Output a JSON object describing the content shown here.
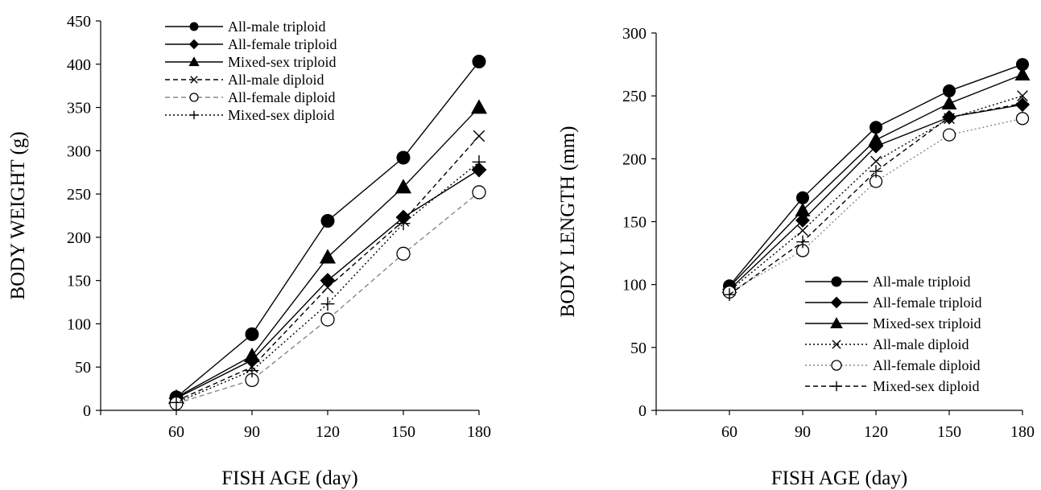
{
  "chart_data": [
    {
      "type": "line",
      "xlabel": "FISH AGE (day)",
      "ylabel": "BODY WEIGHT (g)",
      "x": [
        60,
        90,
        120,
        150,
        180
      ],
      "xlim": [
        30,
        180
      ],
      "ylim": [
        0,
        450
      ],
      "yticks": [
        0,
        50,
        100,
        150,
        200,
        250,
        300,
        350,
        400,
        450
      ],
      "xticks": [
        60,
        90,
        120,
        150,
        180
      ],
      "grid": false,
      "legend_position": "top-center",
      "series": [
        {
          "name": "All-male triploid",
          "values": [
            15,
            88,
            219,
            292,
            403
          ],
          "marker": "filled-circle",
          "line": "solid",
          "color": "#000000"
        },
        {
          "name": "All-female triploid",
          "values": [
            14,
            58,
            150,
            223,
            278
          ],
          "marker": "filled-diamond",
          "line": "solid",
          "color": "#000000"
        },
        {
          "name": "Mixed-sex triploid",
          "values": [
            15,
            63,
            177,
            258,
            350
          ],
          "marker": "filled-triangle",
          "line": "solid",
          "color": "#000000"
        },
        {
          "name": "All-male diploid",
          "values": [
            11,
            50,
            142,
            219,
            317
          ],
          "marker": "x",
          "line": "dashed",
          "color": "#000000"
        },
        {
          "name": "All-female diploid",
          "values": [
            8,
            35,
            105,
            181,
            252
          ],
          "marker": "open-circle",
          "line": "dashed",
          "color": "#888888"
        },
        {
          "name": "Mixed-sex diploid",
          "values": [
            9,
            46,
            123,
            216,
            287
          ],
          "marker": "plus",
          "line": "dotted",
          "color": "#000000"
        }
      ]
    },
    {
      "type": "line",
      "xlabel": "FISH AGE (day)",
      "ylabel": "BODY LENGTH (mm)",
      "x": [
        60,
        90,
        120,
        150,
        180
      ],
      "xlim": [
        30,
        180
      ],
      "ylim": [
        0,
        300
      ],
      "yticks": [
        0,
        50,
        100,
        150,
        200,
        250,
        300
      ],
      "xticks": [
        60,
        90,
        120,
        150,
        180
      ],
      "grid": false,
      "legend_position": "bottom-right",
      "series": [
        {
          "name": "All-male triploid",
          "values": [
            99,
            169,
            225,
            254,
            275
          ],
          "marker": "filled-circle",
          "line": "solid",
          "color": "#000000"
        },
        {
          "name": "All-female triploid",
          "values": [
            96,
            151,
            210,
            233,
            243
          ],
          "marker": "filled-diamond",
          "line": "solid",
          "color": "#000000"
        },
        {
          "name": "Mixed-sex triploid",
          "values": [
            98,
            159,
            215,
            244,
            267
          ],
          "marker": "filled-triangle",
          "line": "solid",
          "color": "#000000"
        },
        {
          "name": "All-male diploid",
          "values": [
            95,
            143,
            198,
            232,
            250
          ],
          "marker": "x",
          "line": "dotted",
          "color": "#000000"
        },
        {
          "name": "All-female diploid",
          "values": [
            94,
            127,
            182,
            219,
            232
          ],
          "marker": "open-circle",
          "line": "dotted",
          "color": "#888888"
        },
        {
          "name": "Mixed-sex diploid",
          "values": [
            92,
            134,
            190,
            233,
            244
          ],
          "marker": "plus",
          "line": "dashed",
          "color": "#000000"
        }
      ]
    }
  ]
}
